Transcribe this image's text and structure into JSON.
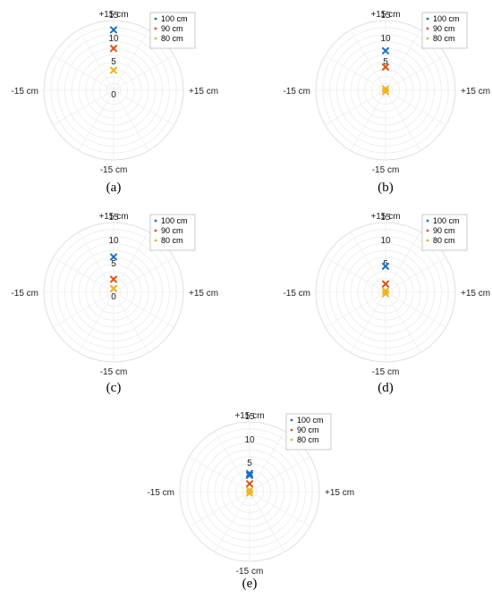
{
  "chart_data": [
    {
      "type": "scatter",
      "caption": "(a)",
      "axis_labels": {
        "top": "+15 cm",
        "bottom": "-15 cm",
        "left": "-15 cm",
        "right": "+15 cm"
      },
      "ring_ticks": [
        "0",
        "5",
        "10",
        "15"
      ],
      "rlim": [
        0,
        15
      ],
      "series": [
        {
          "name": "100 cm",
          "color": "#1f6fbf",
          "points": [
            [
              0,
              13
            ]
          ]
        },
        {
          "name": "90 cm",
          "color": "#d95319",
          "points": [
            [
              0,
              9
            ]
          ]
        },
        {
          "name": "80 cm",
          "color": "#edb120",
          "points": [
            [
              0,
              4.3
            ]
          ]
        }
      ]
    },
    {
      "type": "scatter",
      "caption": "(b)",
      "axis_labels": {
        "top": "+15 cm",
        "bottom": "-15 cm",
        "left": "-15 cm",
        "right": "+15 cm"
      },
      "ring_ticks": [
        "5",
        "10",
        "15"
      ],
      "rlim": [
        0,
        15
      ],
      "series": [
        {
          "name": "100 cm",
          "color": "#1f6fbf",
          "points": [
            [
              0,
              8.5
            ]
          ]
        },
        {
          "name": "90 cm",
          "color": "#d95319",
          "points": [
            [
              0,
              5
            ]
          ]
        },
        {
          "name": "80 cm",
          "color": "#edb120",
          "points": [
            [
              0,
              0.3
            ],
            [
              0,
              -0.3
            ]
          ]
        }
      ]
    },
    {
      "type": "scatter",
      "caption": "(c)",
      "axis_labels": {
        "top": "+15 cm",
        "bottom": "-15 cm",
        "left": "-15 cm",
        "right": "+15 cm"
      },
      "ring_ticks": [
        "0",
        "5",
        "10",
        "15"
      ],
      "rlim": [
        0,
        15
      ],
      "series": [
        {
          "name": "100 cm",
          "color": "#1f6fbf",
          "points": [
            [
              0,
              7.6
            ]
          ]
        },
        {
          "name": "90 cm",
          "color": "#d95319",
          "points": [
            [
              0,
              2.8
            ]
          ]
        },
        {
          "name": "80 cm",
          "color": "#edb120",
          "points": [
            [
              0,
              0.8
            ]
          ]
        }
      ]
    },
    {
      "type": "scatter",
      "caption": "(d)",
      "axis_labels": {
        "top": "+15 cm",
        "bottom": "-15 cm",
        "left": "-15 cm",
        "right": "+15 cm"
      },
      "ring_ticks": [
        "5",
        "10",
        "15"
      ],
      "rlim": [
        0,
        15
      ],
      "series": [
        {
          "name": "100 cm",
          "color": "#1f6fbf",
          "points": [
            [
              0,
              5.6
            ]
          ]
        },
        {
          "name": "90 cm",
          "color": "#d95319",
          "points": [
            [
              0,
              1.8
            ]
          ]
        },
        {
          "name": "80 cm",
          "color": "#edb120",
          "points": [
            [
              0,
              0.3
            ],
            [
              0,
              -0.3
            ]
          ]
        }
      ]
    },
    {
      "type": "scatter",
      "caption": "(e)",
      "axis_labels": {
        "top": "+15 cm",
        "bottom": "-15 cm",
        "left": "-15 cm",
        "right": "+15 cm"
      },
      "ring_ticks": [
        "5",
        "10",
        "15"
      ],
      "rlim": [
        0,
        15
      ],
      "series": [
        {
          "name": "100 cm",
          "color": "#1f6fbf",
          "points": [
            [
              0,
              3.9
            ],
            [
              0,
              3.5
            ]
          ]
        },
        {
          "name": "90 cm",
          "color": "#d95319",
          "points": [
            [
              0,
              1.7
            ]
          ]
        },
        {
          "name": "80 cm",
          "color": "#edb120",
          "points": [
            [
              0,
              0.3
            ],
            [
              0,
              -0.3
            ]
          ]
        }
      ]
    }
  ]
}
